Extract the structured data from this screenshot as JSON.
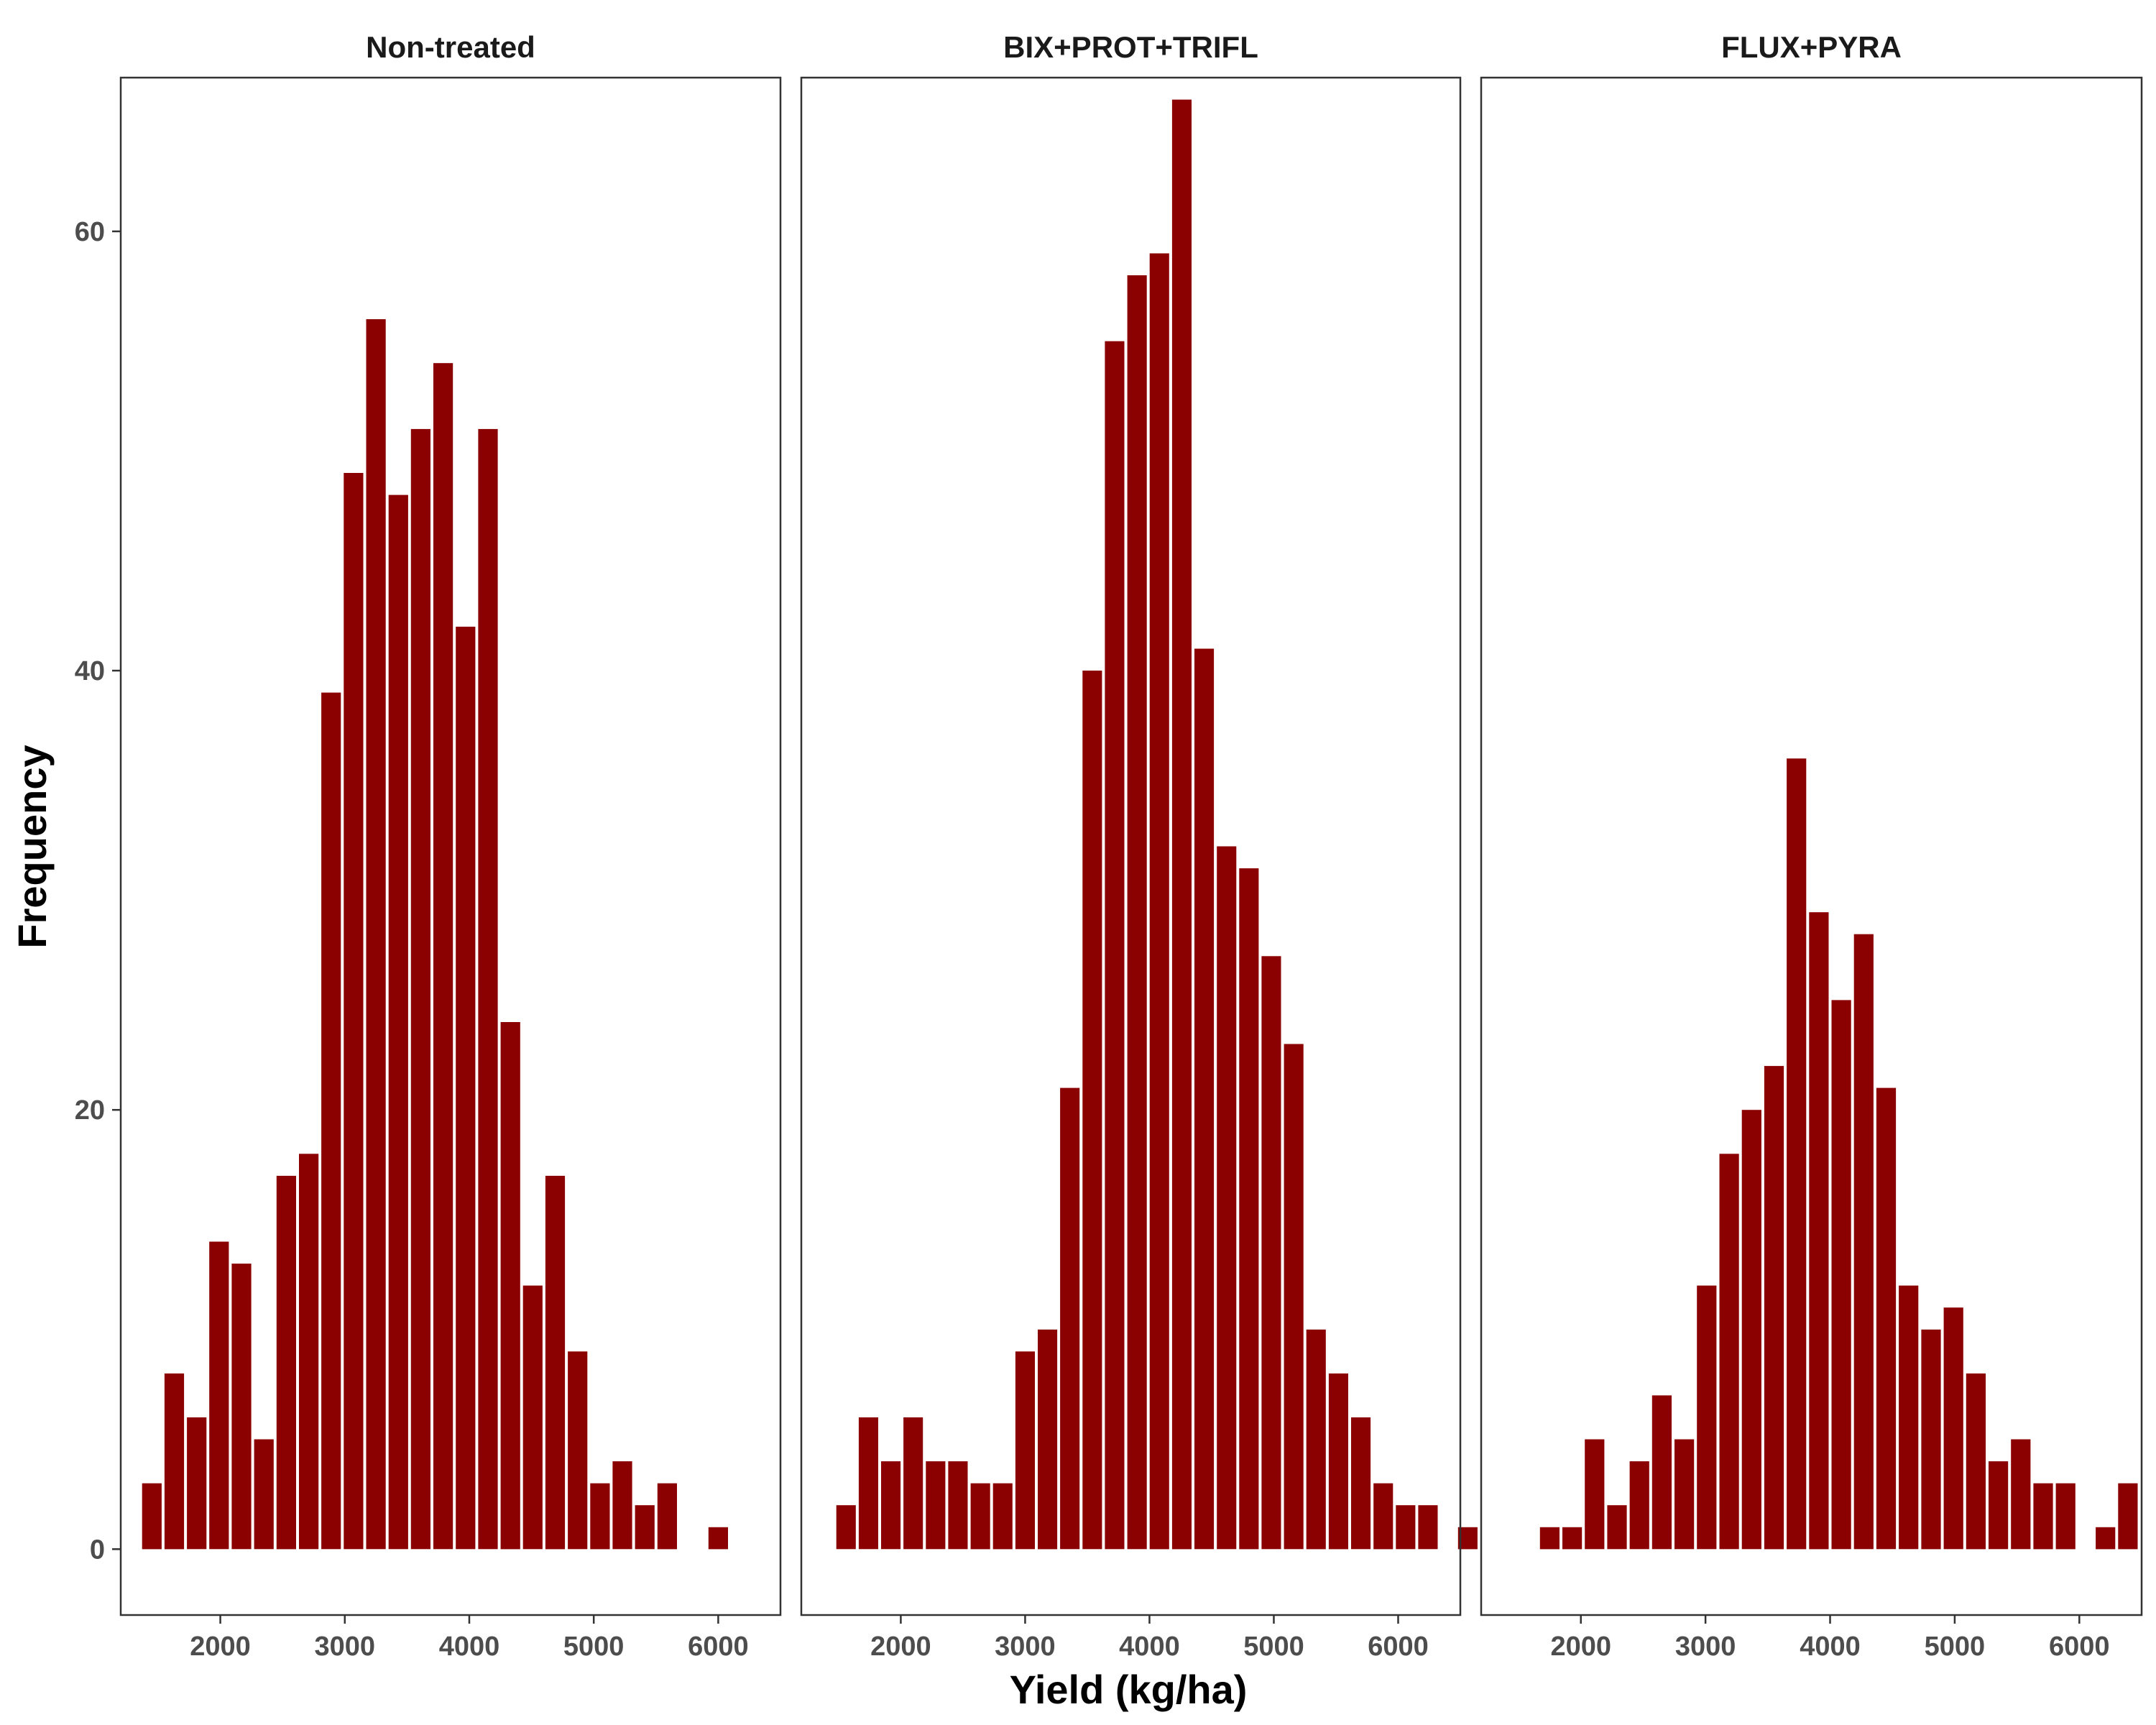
{
  "chart_data": {
    "type": "bar",
    "xlabel": "Yield (kg/ha)",
    "ylabel": "Frequency",
    "ylim": [
      -3,
      67
    ],
    "yticks": [
      0,
      20,
      40,
      60
    ],
    "xlim": [
      1200,
      6500
    ],
    "xticks": [
      2000,
      3000,
      4000,
      5000,
      6000
    ],
    "bar_color": "#8B0000",
    "bin_width": 180,
    "grid": false,
    "panels": [
      {
        "title": "Non-treated",
        "bins": [
          {
            "x": 1450,
            "y": 3
          },
          {
            "x": 1630,
            "y": 8
          },
          {
            "x": 1810,
            "y": 6
          },
          {
            "x": 1990,
            "y": 14
          },
          {
            "x": 2170,
            "y": 13
          },
          {
            "x": 2350,
            "y": 5
          },
          {
            "x": 2530,
            "y": 17
          },
          {
            "x": 2710,
            "y": 18
          },
          {
            "x": 2890,
            "y": 39
          },
          {
            "x": 3070,
            "y": 49
          },
          {
            "x": 3250,
            "y": 56
          },
          {
            "x": 3430,
            "y": 48
          },
          {
            "x": 3610,
            "y": 51
          },
          {
            "x": 3790,
            "y": 54
          },
          {
            "x": 3970,
            "y": 42
          },
          {
            "x": 4150,
            "y": 51
          },
          {
            "x": 4330,
            "y": 24
          },
          {
            "x": 4510,
            "y": 12
          },
          {
            "x": 4690,
            "y": 17
          },
          {
            "x": 4870,
            "y": 9
          },
          {
            "x": 5050,
            "y": 3
          },
          {
            "x": 5230,
            "y": 4
          },
          {
            "x": 5410,
            "y": 2
          },
          {
            "x": 5590,
            "y": 3
          },
          {
            "x": 6000,
            "y": 1
          }
        ]
      },
      {
        "title": "BIX+PROT+TRIFL",
        "bins": [
          {
            "x": 1560,
            "y": 2
          },
          {
            "x": 1740,
            "y": 6
          },
          {
            "x": 1920,
            "y": 4
          },
          {
            "x": 2100,
            "y": 6
          },
          {
            "x": 2280,
            "y": 4
          },
          {
            "x": 2460,
            "y": 4
          },
          {
            "x": 2640,
            "y": 3
          },
          {
            "x": 2820,
            "y": 3
          },
          {
            "x": 3000,
            "y": 9
          },
          {
            "x": 3180,
            "y": 10
          },
          {
            "x": 3360,
            "y": 21
          },
          {
            "x": 3540,
            "y": 40
          },
          {
            "x": 3720,
            "y": 55
          },
          {
            "x": 3900,
            "y": 58
          },
          {
            "x": 4080,
            "y": 59
          },
          {
            "x": 4260,
            "y": 66
          },
          {
            "x": 4440,
            "y": 41
          },
          {
            "x": 4620,
            "y": 32
          },
          {
            "x": 4800,
            "y": 31
          },
          {
            "x": 4980,
            "y": 27
          },
          {
            "x": 5160,
            "y": 23
          },
          {
            "x": 5340,
            "y": 10
          },
          {
            "x": 5520,
            "y": 8
          },
          {
            "x": 5700,
            "y": 6
          },
          {
            "x": 5880,
            "y": 3
          },
          {
            "x": 6060,
            "y": 2
          },
          {
            "x": 6240,
            "y": 2
          },
          {
            "x": 6560,
            "y": 1
          }
        ]
      },
      {
        "title": "FLUX+PYRA",
        "bins": [
          {
            "x": 1750,
            "y": 1
          },
          {
            "x": 1930,
            "y": 1
          },
          {
            "x": 2110,
            "y": 5
          },
          {
            "x": 2290,
            "y": 2
          },
          {
            "x": 2470,
            "y": 4
          },
          {
            "x": 2650,
            "y": 7
          },
          {
            "x": 2830,
            "y": 5
          },
          {
            "x": 3010,
            "y": 12
          },
          {
            "x": 3190,
            "y": 18
          },
          {
            "x": 3370,
            "y": 20
          },
          {
            "x": 3550,
            "y": 22
          },
          {
            "x": 3730,
            "y": 36
          },
          {
            "x": 3910,
            "y": 29
          },
          {
            "x": 4090,
            "y": 25
          },
          {
            "x": 4270,
            "y": 28
          },
          {
            "x": 4450,
            "y": 21
          },
          {
            "x": 4630,
            "y": 12
          },
          {
            "x": 4810,
            "y": 10
          },
          {
            "x": 4990,
            "y": 11
          },
          {
            "x": 5170,
            "y": 8
          },
          {
            "x": 5350,
            "y": 4
          },
          {
            "x": 5530,
            "y": 5
          },
          {
            "x": 5710,
            "y": 3
          },
          {
            "x": 5890,
            "y": 3
          },
          {
            "x": 6210,
            "y": 1
          },
          {
            "x": 6390,
            "y": 3
          }
        ]
      }
    ]
  }
}
